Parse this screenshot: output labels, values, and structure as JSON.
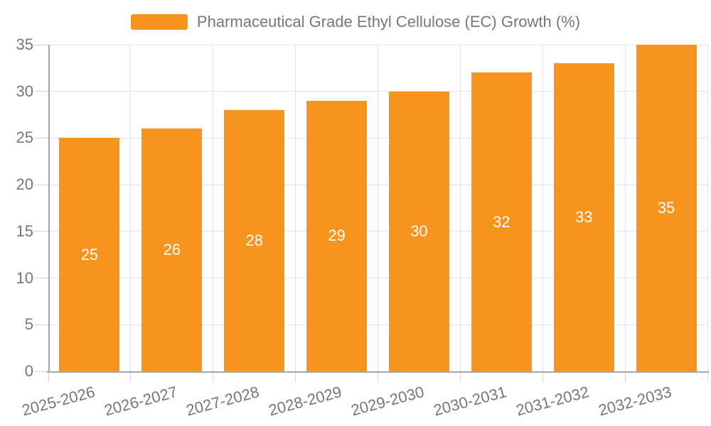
{
  "legend": {
    "items": [
      {
        "label": "Pharmaceutical Grade Ethyl Cellulose (EC) Growth (%)",
        "color": "#F7941E"
      }
    ]
  },
  "chart_data": {
    "type": "bar",
    "title": "Pharmaceutical Grade Ethyl Cellulose (EC) Growth (%)",
    "series_name": "Pharmaceutical Grade Ethyl Cellulose (EC) Growth (%)",
    "categories": [
      "2025-2026",
      "2026-2027",
      "2027-2028",
      "2028-2029",
      "2029-2030",
      "2030-2031",
      "2031-2032",
      "2032-2033"
    ],
    "values": [
      25,
      26,
      28,
      29,
      30,
      32,
      33,
      35
    ],
    "value_labels": [
      "25",
      "26",
      "28",
      "29",
      "30",
      "32",
      "33",
      "35"
    ],
    "xlabel": "",
    "ylabel": "",
    "ylim": [
      0,
      35
    ],
    "yticks": [
      0,
      5,
      10,
      15,
      20,
      25,
      30,
      35
    ],
    "grid": true,
    "legend_position": "top-center",
    "value_label_position": "inside-middle",
    "colors": {
      "bar": "#F7941E",
      "value_label": "#FFFFFF",
      "axis_text": "#777777",
      "grid": "#E4E4E4",
      "axis_line": "#A6A6A6",
      "tick": "#D2D2D2",
      "background": "#FFFFFF"
    }
  }
}
